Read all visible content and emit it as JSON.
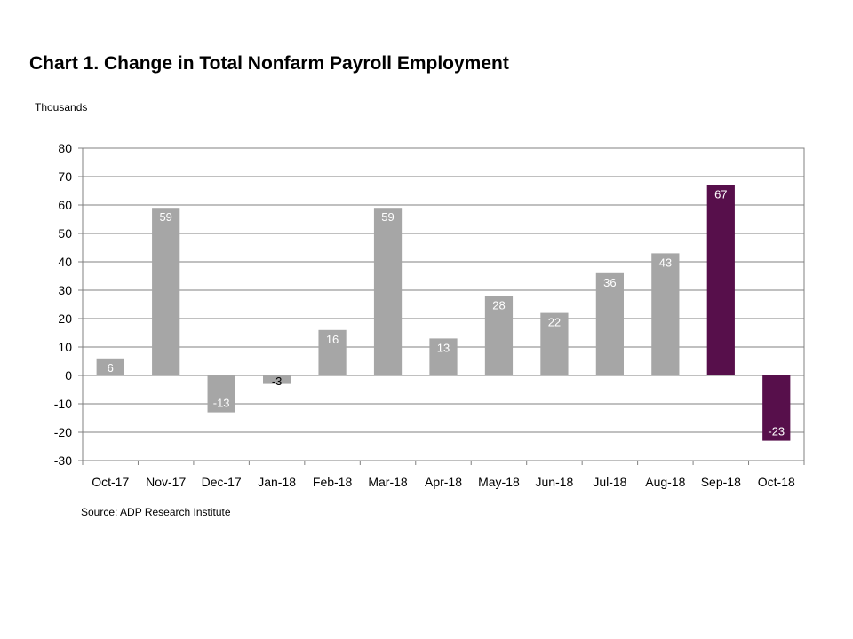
{
  "title": "Chart 1. Change in Total Nonfarm Payroll Employment",
  "units_label": "Thousands",
  "source": "Source: ADP Research Institute",
  "colors": {
    "bar": "#a6a6a6",
    "highlight": "#570f4b",
    "grid": "#808080"
  },
  "chart_data": {
    "type": "bar",
    "categories": [
      "Oct-17",
      "Nov-17",
      "Dec-17",
      "Jan-18",
      "Feb-18",
      "Mar-18",
      "Apr-18",
      "May-18",
      "Jun-18",
      "Jul-18",
      "Aug-18",
      "Sep-18",
      "Oct-18"
    ],
    "values": [
      6,
      59,
      -13,
      -3,
      16,
      59,
      13,
      28,
      22,
      36,
      43,
      67,
      -23
    ],
    "highlighted": [
      "Sep-18",
      "Oct-18"
    ],
    "ylim": [
      -30,
      80
    ],
    "yticks": [
      80,
      70,
      60,
      50,
      40,
      30,
      20,
      10,
      0,
      -10,
      -20,
      -30
    ],
    "grid": true,
    "legend": false
  }
}
